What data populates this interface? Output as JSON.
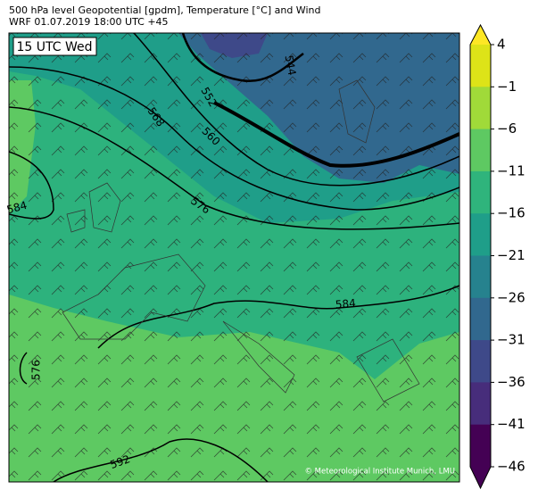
{
  "header": {
    "title": "500 hPa level Geopotential [gpdm], Temperature [°C] and Wind",
    "subtitle": "WRF 01.07.2019 18:00 UTC +45"
  },
  "map": {
    "time_label": "15 UTC Wed",
    "credit": "© Meteorological Institute Munich, LMU",
    "contour_labels": [
      "544",
      "552",
      "560",
      "568",
      "576",
      "584",
      "584",
      "576",
      "592"
    ]
  },
  "colorbar": {
    "ticks": [
      4,
      {
        "value": -1,
        "label": "−1"
      },
      {
        "value": -6,
        "label": "−6"
      },
      {
        "value": -11,
        "label": "−11"
      },
      {
        "value": -16,
        "label": "−16"
      },
      {
        "value": -21,
        "label": "−21"
      },
      {
        "value": -26,
        "label": "−26"
      },
      {
        "value": -31,
        "label": "−31"
      },
      {
        "value": -36,
        "label": "−36"
      },
      {
        "value": -41,
        "label": "−41"
      },
      {
        "value": -46,
        "label": "−46"
      }
    ],
    "colors": [
      "#dde318",
      "#a0da39",
      "#5ec962",
      "#2fb47c",
      "#1f9e89",
      "#26828e",
      "#31688e",
      "#3e4989",
      "#472d7b",
      "#440154"
    ],
    "over_color": "#fde725",
    "under_color": "#440154"
  }
}
